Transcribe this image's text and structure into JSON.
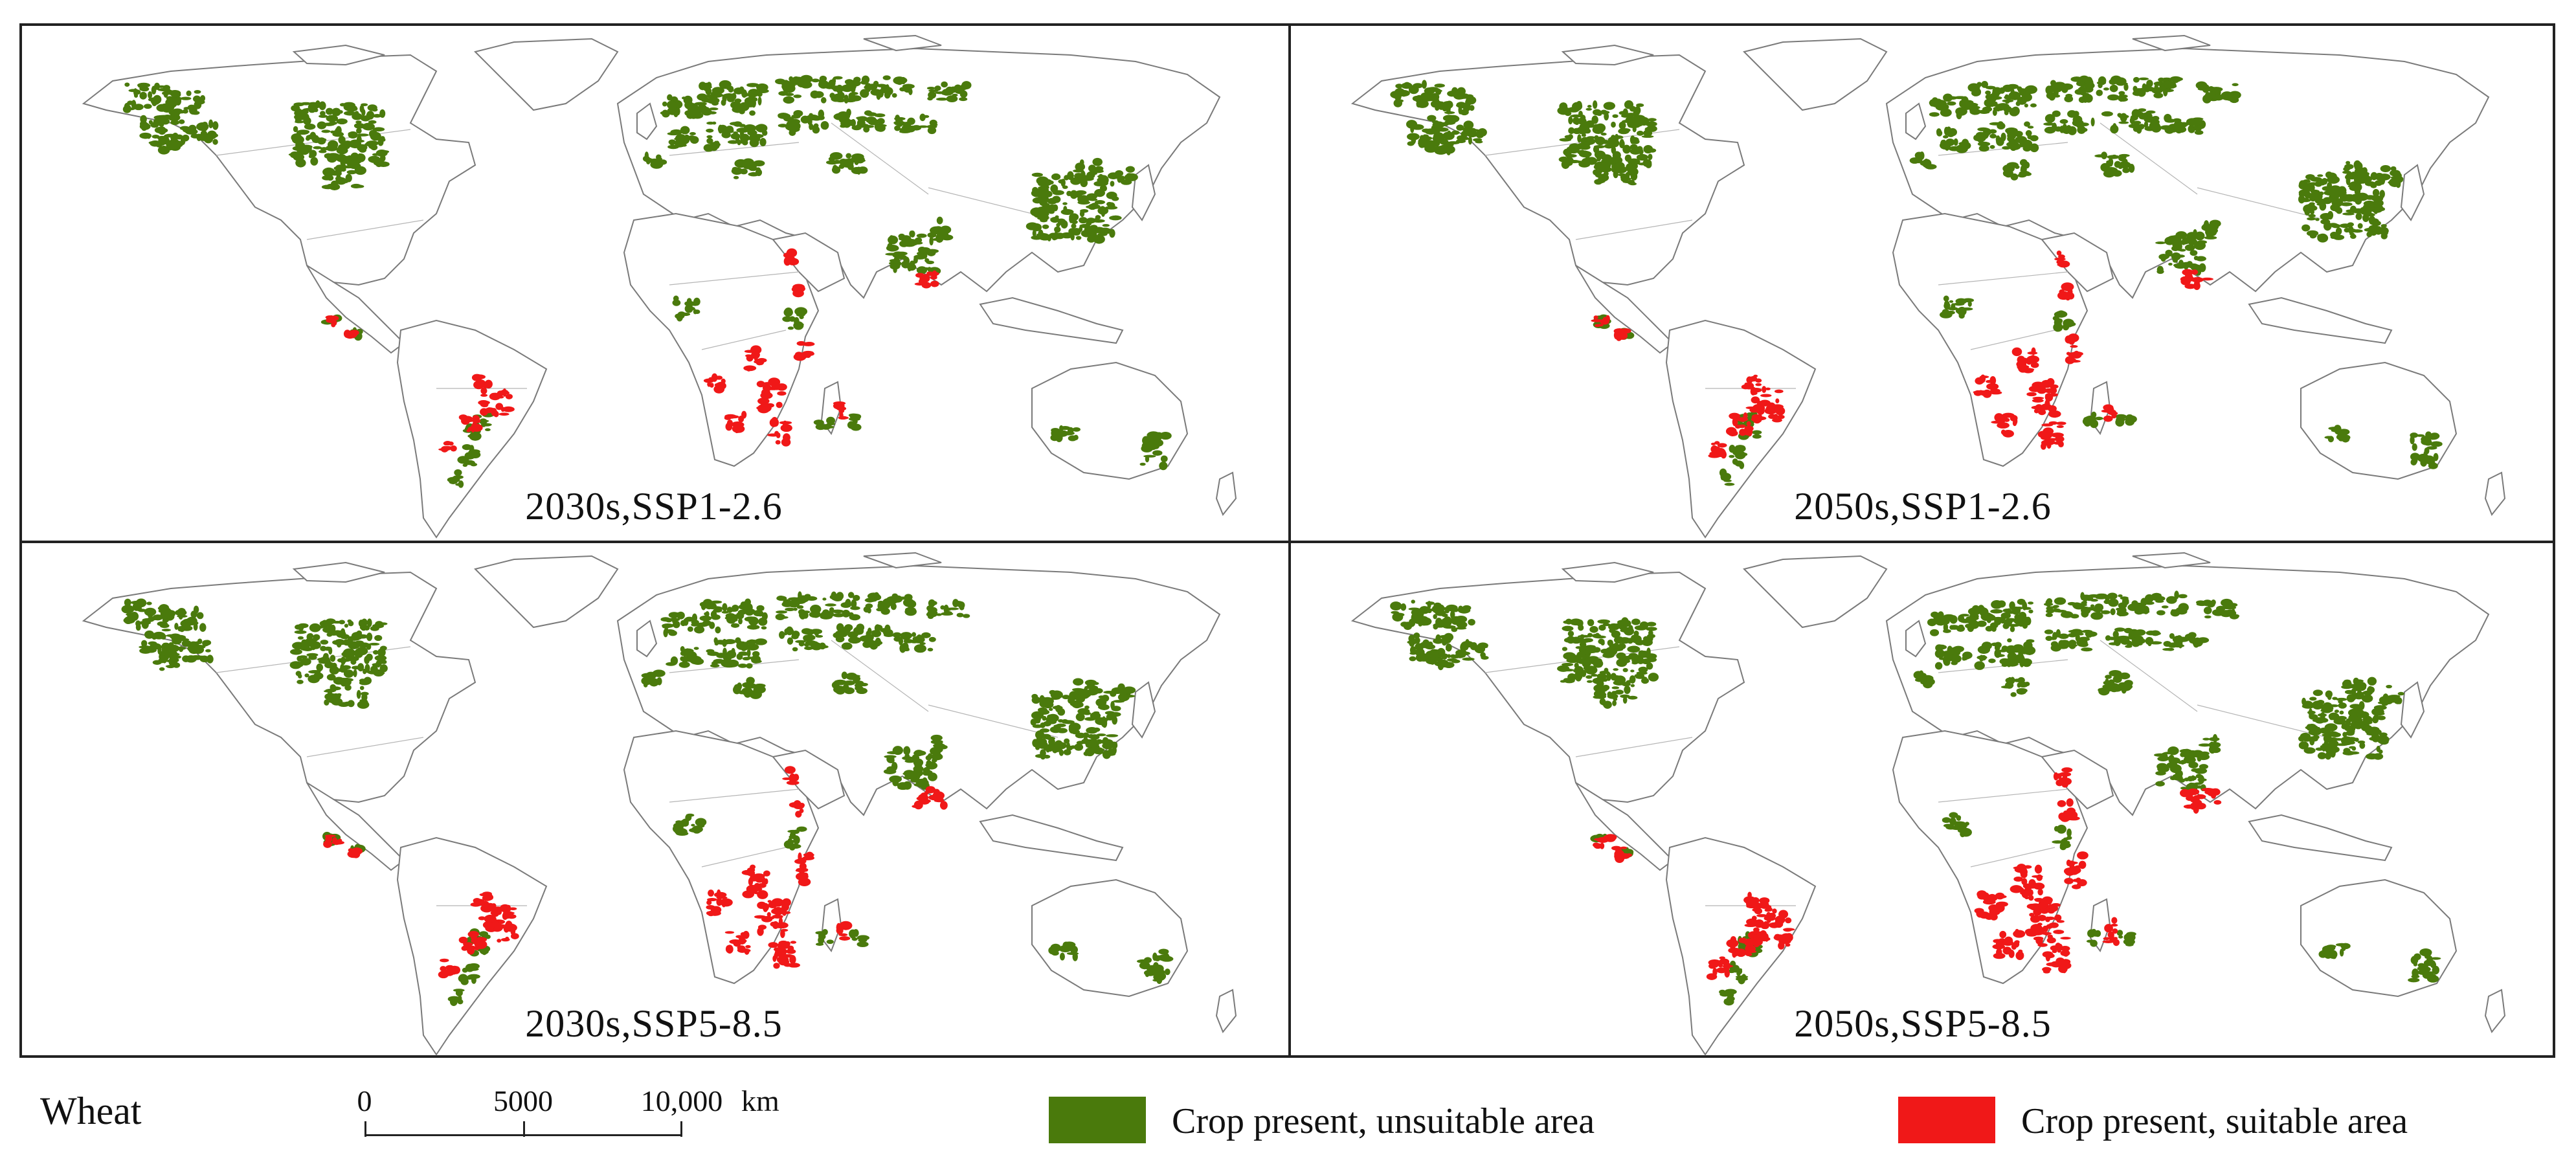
{
  "figure": {
    "panels": [
      {
        "label": "2030s,SSP1-2.6",
        "suitable_scale": 0.85
      },
      {
        "label": "2050s,SSP1-2.6",
        "suitable_scale": 1.0
      },
      {
        "label": "2030s,SSP5-8.5",
        "suitable_scale": 1.1
      },
      {
        "label": "2050s,SSP5-8.5",
        "suitable_scale": 1.3
      }
    ]
  },
  "legend": {
    "crop": "Wheat",
    "scale": {
      "ticks": [
        "0",
        "5000",
        "10,000"
      ],
      "unit": "km"
    },
    "unsuitable": {
      "label": "Crop present, unsuitable area",
      "color": "#4a7a0c"
    },
    "suitable": {
      "label": "Crop present, suitable area",
      "color": "#f01818"
    }
  }
}
